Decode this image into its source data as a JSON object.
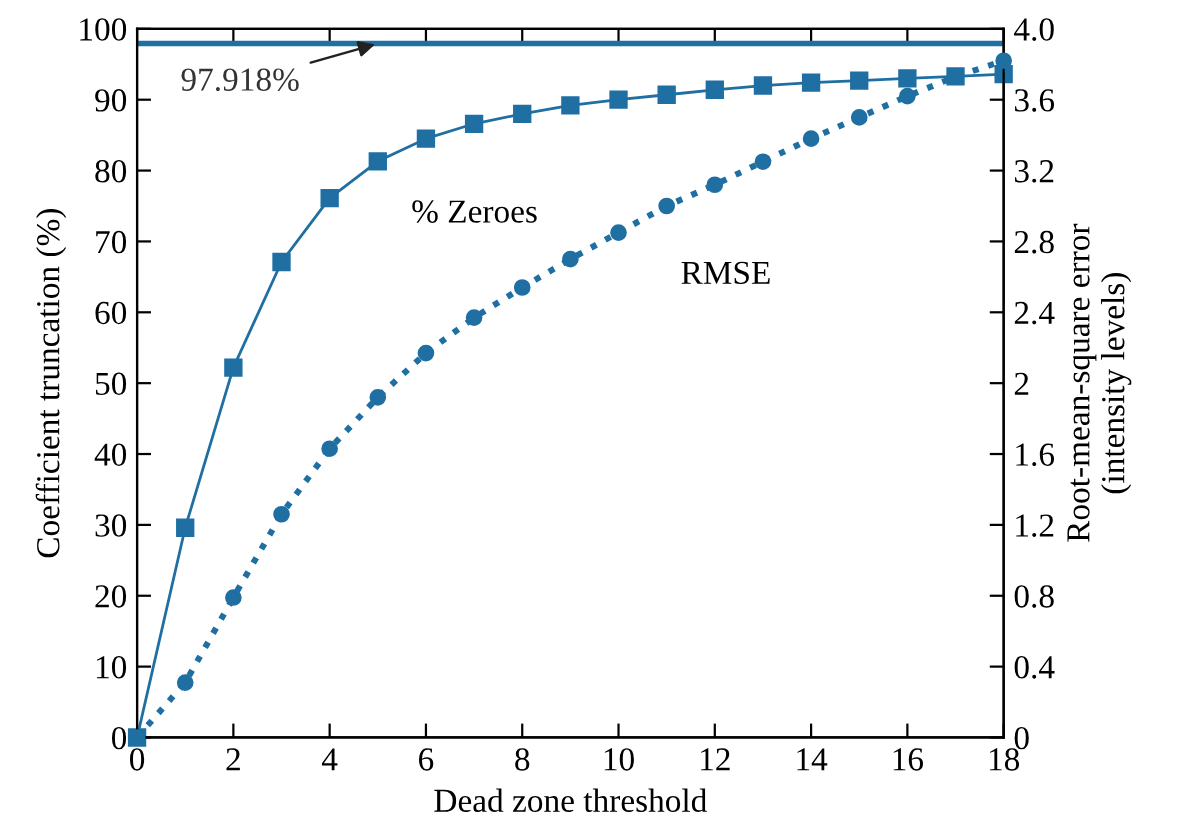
{
  "chart_data": {
    "type": "line",
    "xlabel": "Dead zone threshold",
    "ylabel": "Coefficient truncation (%)",
    "y2label": "Root-mean-square error\n(intensity levels)",
    "x": [
      0,
      1,
      2,
      3,
      4,
      5,
      6,
      7,
      8,
      9,
      10,
      11,
      12,
      13,
      14,
      15,
      16,
      17,
      18
    ],
    "series": [
      {
        "name": "% Zeroes",
        "color": "#1f6fa3",
        "marker": "square",
        "line_style": "solid",
        "values": [
          0,
          29.6,
          52.2,
          67.1,
          76.1,
          81.3,
          84.5,
          86.6,
          88.0,
          89.2,
          90.0,
          90.7,
          91.4,
          92.0,
          92.4,
          92.7,
          93.0,
          93.3,
          93.6
        ]
      },
      {
        "name": "RMSE",
        "color": "#1f6fa3",
        "marker": "circle",
        "line_style": "dotted",
        "axis": "y2",
        "values": [
          0,
          0.31,
          0.79,
          1.26,
          1.63,
          1.92,
          2.17,
          2.37,
          2.54,
          2.7,
          2.85,
          3.0,
          3.12,
          3.25,
          3.38,
          3.5,
          3.62,
          3.73,
          3.82
        ]
      }
    ],
    "ref_lines": [
      {
        "axis": "y",
        "value": 97.918,
        "label": "97.918%",
        "color": "#1f6fa3"
      }
    ],
    "xlim": [
      0,
      18
    ],
    "xticks": [
      0,
      2,
      4,
      6,
      8,
      10,
      12,
      14,
      16,
      18
    ],
    "ylim": [
      0,
      100
    ],
    "yticks": [
      0,
      10,
      20,
      30,
      40,
      50,
      60,
      70,
      80,
      90,
      100
    ],
    "y2lim": [
      0,
      4.0
    ],
    "y2ticks": [
      0,
      0.4,
      0.8,
      1.2,
      1.6,
      2,
      2.4,
      2.8,
      3.2,
      3.6,
      {
        "value": 4.0,
        "label": "4.0"
      }
    ],
    "grid": false,
    "legend": false
  }
}
